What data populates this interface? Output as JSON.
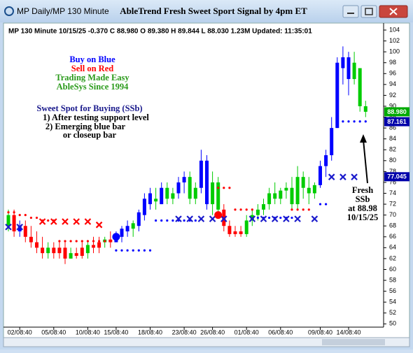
{
  "window": {
    "title": "MP  Daily/MP 130 Minute"
  },
  "chart_data": {
    "type": "candlestick",
    "title": "AbleTrend Fresh Sweet Sport Signal by 4pm ET",
    "info": "MP 130 Minute 10/15/25 -0.370 C 88.980 O 89.380 H 89.844 L 88.030 1.23M Updated: 11:35:01",
    "notes": [
      "Buy on Blue",
      "Sell on Red",
      "Trading Made Easy",
      "AbleSys Since 1994",
      "Sweet Spot for Buying (SSb)",
      "1) After testing support level",
      "2) Emerging blue bar",
      "or closeup bar"
    ],
    "annotation": [
      "Fresh",
      "SSb",
      "at 88.98",
      "10/15/25"
    ],
    "categories": [
      null,
      null,
      "02/08:40",
      null,
      null,
      null,
      null,
      null,
      "05/08:40",
      null,
      null,
      null,
      null,
      null,
      "10/08:40",
      null,
      null,
      null,
      null,
      "15/08:40",
      null,
      null,
      null,
      null,
      null,
      "18/08:40",
      null,
      null,
      null,
      null,
      null,
      "23/08:40",
      null,
      null,
      null,
      null,
      "26/08:40",
      null,
      null,
      null,
      null,
      null,
      "01/08:40",
      null,
      null,
      null,
      null,
      null,
      "06/08:40",
      null,
      null,
      null,
      null,
      null,
      null,
      "09/08:40",
      null,
      null,
      null,
      null,
      "14/08:40",
      null,
      null,
      null
    ],
    "open": [
      68,
      70,
      67,
      68,
      66,
      65,
      64,
      63,
      64,
      63,
      64,
      62,
      63,
      62.5,
      63,
      64.5,
      64,
      65,
      65.5,
      65,
      66,
      67,
      67.5,
      68,
      70,
      72,
      73,
      72,
      75,
      73,
      74,
      76,
      77,
      73,
      75,
      80,
      72,
      76,
      71,
      68,
      66.5,
      67,
      66.5,
      69,
      70,
      71,
      72,
      74,
      73,
      74.5,
      75,
      72,
      77,
      75,
      74,
      75.5,
      79,
      81,
      86,
      97,
      99,
      95,
      97,
      90
    ],
    "high": [
      71,
      71,
      69,
      69,
      68,
      67,
      66,
      65,
      65,
      65,
      65,
      64,
      64,
      65,
      65,
      66,
      66,
      66,
      67,
      67,
      68,
      69,
      69,
      71,
      74,
      75,
      75,
      76,
      76,
      75,
      77,
      78,
      78,
      76,
      82,
      81,
      78,
      77,
      72,
      69,
      68,
      68,
      70,
      71,
      72,
      73,
      75,
      76,
      75,
      76,
      77,
      79,
      78,
      77,
      76,
      80,
      82,
      88,
      99,
      101,
      100,
      100,
      97,
      91
    ],
    "low": [
      67,
      66,
      66,
      65,
      64,
      63,
      62,
      62,
      62,
      62,
      61,
      62,
      62,
      62,
      62,
      63,
      63,
      64,
      64,
      65,
      65,
      66,
      66,
      67,
      69,
      71,
      71,
      72,
      72,
      72,
      73,
      74,
      72,
      72,
      74,
      71,
      70,
      70,
      67,
      66,
      66,
      66,
      66,
      68,
      69,
      70,
      71,
      72,
      72,
      73,
      71,
      71,
      73,
      72,
      73,
      75,
      77,
      80,
      86,
      94,
      92,
      94,
      89,
      88
    ],
    "close": [
      70,
      67,
      68,
      66,
      65,
      64,
      63,
      64,
      63,
      64,
      62,
      63,
      62.5,
      64,
      64.5,
      64,
      65,
      65.5,
      65,
      66.5,
      67.5,
      68,
      68.5,
      70.5,
      73,
      74,
      72.5,
      75,
      73,
      74,
      76,
      77,
      73,
      75,
      80,
      72,
      76,
      71,
      68,
      66.5,
      67,
      66.5,
      69,
      70,
      71,
      72,
      74,
      73,
      74.5,
      75,
      72,
      77,
      75,
      74,
      75.5,
      79,
      81,
      86,
      98,
      99,
      95,
      98,
      90,
      88.98
    ],
    "candle_colors": [
      "#00cc00",
      "#ff0000",
      "#0000ff",
      "#ff0000",
      "#ff0000",
      "#ff0000",
      "#ff0000",
      "#00cc00",
      "#ff0000",
      "#ff0000",
      "#ff0000",
      "#00cc00",
      "#ff0000",
      "#ff0000",
      "#00cc00",
      "#ff0000",
      "#ff0000",
      "#00cc00",
      "#ff0000",
      "#0000ff",
      "#0000ff",
      "#0000ff",
      "#00cc00",
      "#0000ff",
      "#0000ff",
      "#0000ff",
      "#00cc00",
      "#0000ff",
      "#00cc00",
      "#00cc00",
      "#0000ff",
      "#0000ff",
      "#00cc00",
      "#00cc00",
      "#0000ff",
      "#0000ff",
      "#00cc00",
      "#00cc00",
      "#ff0000",
      "#ff0000",
      "#ff0000",
      "#ff0000",
      "#00cc00",
      "#00cc00",
      "#00cc00",
      "#00cc00",
      "#00cc00",
      "#00cc00",
      "#00cc00",
      "#00cc00",
      "#00cc00",
      "#00cc00",
      "#00cc00",
      "#00cc00",
      "#00cc00",
      "#0000ff",
      "#0000ff",
      "#0000ff",
      "#0000ff",
      "#0000ff",
      "#0000ff",
      "#00cc00",
      "#00cc00",
      "#00cc00"
    ],
    "overlays": [
      {
        "shape": "dot",
        "color": "#ff0000",
        "values": [
          70.5,
          70.5,
          70,
          70,
          69.5,
          69.5,
          69,
          69,
          69,
          65.2,
          65.2,
          65.2,
          65.2,
          65.2,
          65.2,
          65.2,
          65.2,
          65.2,
          65.2,
          null,
          null,
          null,
          null,
          null,
          null,
          null,
          null,
          null,
          null,
          null,
          null,
          null,
          null,
          null,
          null,
          null,
          null,
          75,
          75,
          75,
          71,
          71,
          71,
          71,
          null,
          null,
          null,
          null,
          null,
          null,
          71,
          71,
          71,
          71,
          null,
          null,
          null,
          null,
          null,
          null,
          null,
          null,
          null,
          null
        ]
      },
      {
        "shape": "dot",
        "color": "#0000ff",
        "values": [
          null,
          null,
          null,
          null,
          null,
          null,
          null,
          null,
          null,
          null,
          null,
          null,
          null,
          null,
          null,
          null,
          null,
          null,
          null,
          63.5,
          63.5,
          63.5,
          63.5,
          63.5,
          63.5,
          63.5,
          69,
          69,
          69,
          69,
          69,
          69,
          69,
          69,
          null,
          null,
          null,
          null,
          null,
          null,
          null,
          null,
          null,
          null,
          69.5,
          69.5,
          69.5,
          69.5,
          69.5,
          69.5,
          69.5,
          null,
          null,
          null,
          null,
          72,
          72,
          null,
          87.2,
          87.2,
          87.2,
          87.2,
          87.2,
          87.2
        ]
      },
      {
        "shape": "x",
        "color": "#ff0000",
        "values": [
          null,
          null,
          null,
          null,
          null,
          null,
          68.8,
          null,
          68.8,
          null,
          68.8,
          null,
          68.8,
          null,
          68.8,
          null,
          68.2,
          null,
          null,
          null,
          null,
          null,
          null,
          null,
          null,
          null,
          null,
          null,
          null,
          null,
          null,
          null,
          null,
          null,
          null,
          null,
          null,
          null,
          null,
          null,
          null,
          null,
          null,
          null,
          null,
          null,
          null,
          null,
          null,
          null,
          null,
          null,
          null,
          null,
          null,
          null,
          null,
          null,
          null,
          null,
          null,
          null,
          null,
          null
        ]
      },
      {
        "shape": "x",
        "color": "#1a1acc",
        "values": [
          67.8,
          null,
          67.8,
          null,
          null,
          null,
          null,
          null,
          null,
          null,
          null,
          null,
          null,
          null,
          null,
          null,
          null,
          null,
          null,
          null,
          null,
          null,
          null,
          null,
          null,
          null,
          null,
          null,
          null,
          null,
          69.3,
          null,
          69.3,
          null,
          69.3,
          null,
          69.3,
          null,
          69.3,
          null,
          null,
          null,
          null,
          69.3,
          null,
          69.3,
          null,
          69.3,
          null,
          69.3,
          null,
          69.3,
          null,
          null,
          69.3,
          null,
          null,
          77,
          null,
          77,
          null,
          77,
          null,
          null
        ]
      },
      {
        "shape": "circle",
        "color": "#0000ff",
        "values": [
          null,
          null,
          null,
          null,
          null,
          null,
          null,
          null,
          null,
          null,
          null,
          null,
          null,
          null,
          null,
          null,
          null,
          null,
          null,
          66,
          null,
          null,
          null,
          null,
          null,
          null,
          null,
          null,
          null,
          null,
          null,
          null,
          null,
          null,
          null,
          null,
          null,
          null,
          null,
          null,
          null,
          null,
          null,
          null,
          null,
          null,
          null,
          null,
          null,
          null,
          null,
          null,
          null,
          null,
          null,
          null,
          null,
          null,
          null,
          null,
          null,
          null,
          null,
          null
        ]
      },
      {
        "shape": "circle",
        "color": "#ff0000",
        "values": [
          null,
          null,
          null,
          null,
          null,
          null,
          null,
          null,
          null,
          null,
          null,
          null,
          null,
          null,
          null,
          null,
          null,
          null,
          null,
          null,
          null,
          null,
          null,
          null,
          null,
          null,
          null,
          null,
          null,
          null,
          null,
          null,
          null,
          null,
          null,
          null,
          null,
          70,
          null,
          null,
          null,
          null,
          null,
          null,
          null,
          null,
          null,
          null,
          null,
          null,
          null,
          null,
          null,
          null,
          null,
          null,
          null,
          null,
          null,
          null,
          null,
          null,
          null,
          null
        ]
      }
    ],
    "price_labels": [
      {
        "value": 88.98,
        "label": "88.980",
        "color": "#00aa00"
      },
      {
        "value": 87.161,
        "label": "87.161",
        "color": "#0000aa"
      },
      {
        "value": 77.045,
        "label": "77.045",
        "color": "#0000aa"
      }
    ],
    "ylim": [
      49.4,
      104.9
    ],
    "yticks": [
      50,
      52,
      54,
      56,
      58,
      60,
      62,
      64,
      66,
      68,
      70,
      72,
      74,
      76,
      78,
      80,
      82,
      84,
      86,
      88,
      90,
      92,
      94,
      96,
      98,
      100,
      102,
      104
    ],
    "grid": false
  }
}
